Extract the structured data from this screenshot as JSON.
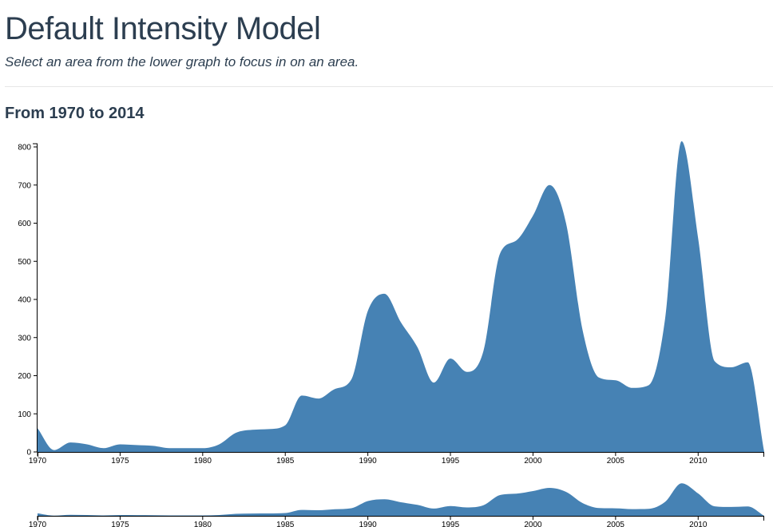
{
  "page": {
    "title": "Default Intensity Model",
    "subtitle": "Select an area from the lower graph to focus in on an area.",
    "section_title": "From 1970 to 2014"
  },
  "colors": {
    "area_fill": "#4682b4",
    "axis": "#000000",
    "text": "#2c3e50"
  },
  "chart_data": [
    {
      "type": "area",
      "role": "focus",
      "title": "",
      "xlabel": "",
      "ylabel": "",
      "xlim": [
        1970,
        2014
      ],
      "ylim": [
        0,
        800
      ],
      "x_ticks": [
        1970,
        1975,
        1980,
        1985,
        1990,
        1995,
        2000,
        2005,
        2010
      ],
      "y_ticks": [
        0,
        100,
        200,
        300,
        400,
        500,
        600,
        700,
        800
      ],
      "grid": false,
      "series": [
        {
          "x": [
            1970,
            1971,
            1972,
            1973,
            1974,
            1975,
            1976,
            1977,
            1978,
            1979,
            1980,
            1981,
            1982,
            1983,
            1984,
            1985,
            1986,
            1987,
            1988,
            1989,
            1990,
            1991,
            1992,
            1993,
            1994,
            1995,
            1996,
            1997,
            1998,
            1999,
            2000,
            2001,
            2002,
            2003,
            2004,
            2005,
            2006,
            2007,
            2008,
            2009,
            2010,
            2011,
            2012,
            2013,
            2014
          ],
          "values": [
            62,
            5,
            25,
            20,
            10,
            20,
            18,
            16,
            10,
            10,
            10,
            20,
            50,
            58,
            60,
            70,
            148,
            140,
            165,
            190,
            370,
            415,
            340,
            275,
            182,
            245,
            210,
            265,
            520,
            555,
            620,
            700,
            600,
            320,
            195,
            188,
            168,
            175,
            350,
            815,
            560,
            238,
            222,
            235,
            0
          ]
        }
      ]
    },
    {
      "type": "area",
      "role": "context",
      "title": "",
      "xlabel": "",
      "ylabel": "",
      "xlim": [
        1970,
        2014
      ],
      "ylim": [
        0,
        800
      ],
      "x_ticks": [
        1970,
        1975,
        1980,
        1985,
        1990,
        1995,
        2000,
        2005,
        2010
      ],
      "grid": false,
      "series": [
        {
          "x": [
            1970,
            1971,
            1972,
            1973,
            1974,
            1975,
            1976,
            1977,
            1978,
            1979,
            1980,
            1981,
            1982,
            1983,
            1984,
            1985,
            1986,
            1987,
            1988,
            1989,
            1990,
            1991,
            1992,
            1993,
            1994,
            1995,
            1996,
            1997,
            1998,
            1999,
            2000,
            2001,
            2002,
            2003,
            2004,
            2005,
            2006,
            2007,
            2008,
            2009,
            2010,
            2011,
            2012,
            2013,
            2014
          ],
          "values": [
            62,
            5,
            25,
            20,
            10,
            20,
            18,
            16,
            10,
            10,
            10,
            20,
            50,
            58,
            60,
            70,
            148,
            140,
            165,
            190,
            370,
            415,
            340,
            275,
            182,
            245,
            210,
            265,
            520,
            555,
            620,
            700,
            600,
            320,
            195,
            188,
            168,
            175,
            350,
            815,
            560,
            238,
            222,
            235,
            0
          ]
        }
      ]
    }
  ]
}
